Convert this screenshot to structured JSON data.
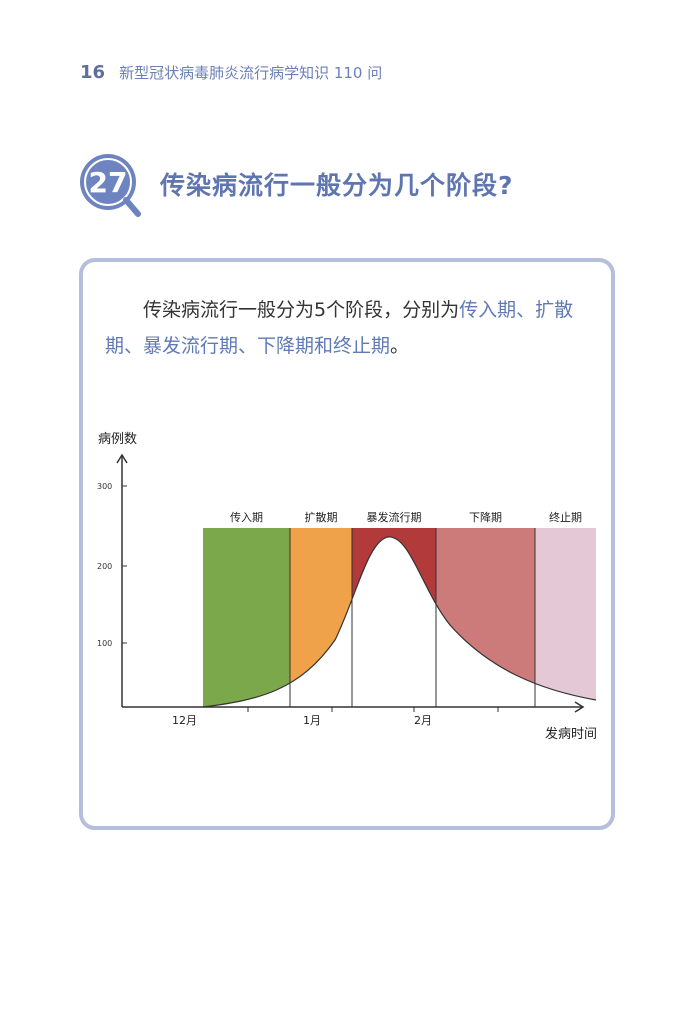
{
  "header": {
    "page_number": "16",
    "book_title": "新型冠状病毒肺炎流行病学知识 110 问"
  },
  "question": {
    "number": "27",
    "title": "传染病流行一般分为几个阶段?"
  },
  "answer": {
    "lead": "传染病流行一般分为5个阶段，分别为",
    "stages_highlight_1": "传入期、扩散期、",
    "stages_highlight_2": "暴发流行期、下降期和终止期",
    "tail": "。"
  },
  "chart_data": {
    "type": "area",
    "ylabel": "病例数",
    "xlabel": "发病时间",
    "yticks": [
      "100",
      "200",
      "300"
    ],
    "xticks": [
      "12月",
      "1月",
      "2月"
    ],
    "stages": [
      {
        "label": "传入期",
        "color": "#7aa84a"
      },
      {
        "label": "扩散期",
        "color": "#f0a24a"
      },
      {
        "label": "暴发流行期",
        "color": "#b23a3a"
      },
      {
        "label": "下降期",
        "color": "#cc7a7a"
      },
      {
        "label": "终止期",
        "color": "#e4c8d6"
      }
    ]
  }
}
